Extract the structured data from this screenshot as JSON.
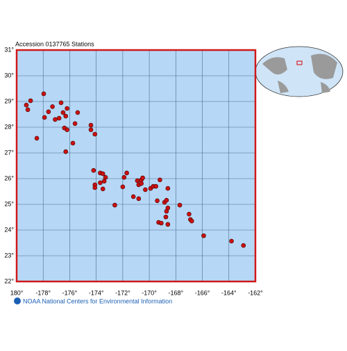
{
  "chart_data": {
    "type": "scatter",
    "title": "Accession 0137765 Stations",
    "footer": "NOAA National Centers for Environmental Information",
    "color": "#cc1111",
    "grid": true,
    "xlim": [
      -180,
      -162
    ],
    "xticks": [
      {
        "value": -180,
        "label": "180°"
      },
      {
        "value": -178,
        "label": "-178°"
      },
      {
        "value": -176,
        "label": "-176°"
      },
      {
        "value": -174,
        "label": "-174°"
      },
      {
        "value": -172,
        "label": "-172°"
      },
      {
        "value": -170,
        "label": "-170°"
      },
      {
        "value": -168,
        "label": "-168°"
      },
      {
        "value": -166,
        "label": "-166°"
      },
      {
        "value": -164,
        "label": "-164°"
      },
      {
        "value": -162,
        "label": "-162°"
      }
    ],
    "ylim": [
      22,
      31
    ],
    "yticks": [
      {
        "value": 22,
        "label": "22°"
      },
      {
        "value": 23,
        "label": "23°"
      },
      {
        "value": 24,
        "label": "24°"
      },
      {
        "value": 25,
        "label": "25°"
      },
      {
        "value": 26,
        "label": "26°"
      },
      {
        "value": 27,
        "label": "27°"
      },
      {
        "value": 28,
        "label": "28°"
      },
      {
        "value": 29,
        "label": "29°"
      },
      {
        "value": 30,
        "label": "30°"
      },
      {
        "value": 31,
        "label": "31°"
      }
    ],
    "x": [
      -179.27,
      -179.16,
      -178.95,
      -178.48,
      -177.96,
      -177.9,
      -177.6,
      -177.3,
      -177.1,
      -176.8,
      -176.65,
      -176.5,
      -176.3,
      -176.4,
      -176.2,
      -176.3,
      -176.2,
      -175.6,
      -175.4,
      -175.76,
      -174.4,
      -174.4,
      -174.1,
      -174.2,
      -174.1,
      -174.1,
      -173.7,
      -173.5,
      -173.7,
      -173.4,
      -173.3,
      -173.5,
      -172.6,
      -172.0,
      -171.9,
      -171.7,
      -171.2,
      -170.9,
      -170.8,
      -170.6,
      -170.8,
      -170.6,
      -170.5,
      -170.3,
      -169.9,
      -169.7,
      -169.5,
      -169.2,
      -169.4,
      -169.3,
      -169.1,
      -168.85,
      -168.6,
      -168.7,
      -168.6,
      -168.7,
      -168.75,
      -168.6,
      -167.7,
      -167.0,
      -166.9,
      -166.8,
      -165.9,
      -163.8,
      -162.9
    ],
    "values": [
      28.86,
      28.68,
      29.03,
      27.57,
      29.3,
      28.38,
      28.6,
      28.8,
      28.3,
      28.35,
      28.95,
      28.57,
      28.43,
      27.97,
      27.9,
      27.05,
      28.73,
      28.14,
      28.57,
      27.38,
      28.08,
      27.9,
      27.73,
      26.32,
      25.76,
      25.65,
      26.22,
      26.19,
      25.84,
      25.9,
      26.05,
      25.6,
      24.97,
      25.68,
      26.05,
      26.22,
      25.3,
      25.92,
      25.76,
      25.81,
      25.22,
      25.95,
      26.03,
      25.57,
      25.62,
      25.7,
      25.7,
      25.95,
      25.14,
      24.3,
      24.27,
      25.08,
      25.62,
      25.16,
      24.86,
      24.73,
      24.51,
      24.22,
      24.97,
      24.62,
      24.41,
      24.35,
      23.78,
      23.57,
      23.4
    ]
  }
}
